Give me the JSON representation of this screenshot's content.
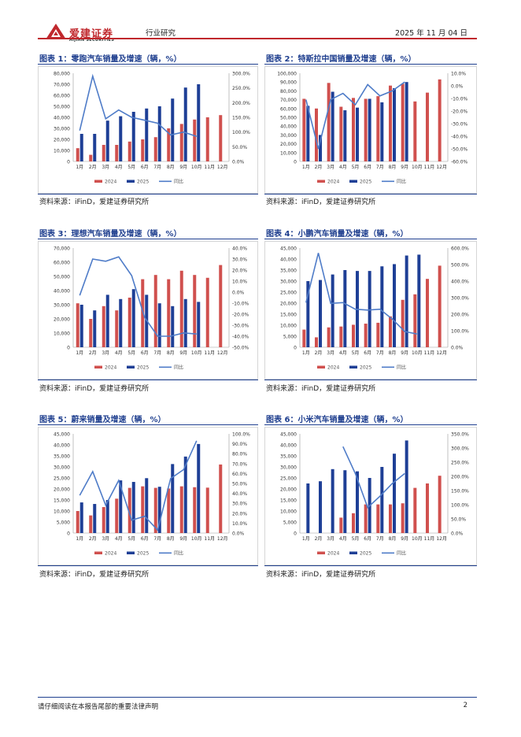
{
  "header": {
    "logo_cn": "爱建证券",
    "logo_en": "AIJIAN SECURITIES",
    "category": "行业研究",
    "date": "2025 年 11 月 04 日"
  },
  "footer": {
    "disclaimer": "请仔细阅读在本报告尾部的重要法律声明",
    "page": "2"
  },
  "legend": {
    "s2024": "2024",
    "s2025": "2025",
    "yoy": "同比"
  },
  "colors": {
    "s2024": "#d0504e",
    "s2025": "#1e3f96",
    "yoy": "#4f7cc8",
    "title": "#1f3f8f",
    "brand": "#c0282d"
  },
  "charts": [
    {
      "title": "图表 1：零跑汽车销量及增速（辆，%）",
      "source": "资料来源：iFinD，爱建证券研究所",
      "chart_data": {
        "type": "bar",
        "categories": [
          "1月",
          "2月",
          "3月",
          "4月",
          "5月",
          "6月",
          "7月",
          "8月",
          "9月",
          "10月",
          "11月",
          "12月"
        ],
        "series": [
          {
            "name": "2024",
            "axis": "left",
            "values": [
              12000,
              6000,
              15000,
              15000,
              18000,
              20000,
              22000,
              30000,
              34000,
              38000,
              40000,
              42000
            ]
          },
          {
            "name": "2025",
            "axis": "left",
            "values": [
              25000,
              25000,
              37000,
              41000,
              45000,
              48000,
              50000,
              57000,
              67000,
              70000,
              null,
              null
            ]
          },
          {
            "name": "同比",
            "type": "line",
            "axis": "right",
            "values": [
              105,
              290,
              145,
              175,
              150,
              140,
              130,
              90,
              100,
              85,
              null,
              null
            ]
          }
        ],
        "y_left": {
          "min": 0,
          "max": 80000,
          "step": 10000,
          "labels": [
            "0",
            "10,000",
            "20,000",
            "30,000",
            "40,000",
            "50,000",
            "60,000",
            "70,000",
            "80,000"
          ]
        },
        "y_right": {
          "min": 0,
          "max": 300,
          "step": 50,
          "labels": [
            "0.0%",
            "50.0%",
            "100.0%",
            "150.0%",
            "200.0%",
            "250.0%",
            "300.0%"
          ]
        }
      }
    },
    {
      "title": "图表 2：特斯拉中国销量及增速（辆，%）",
      "source": "资料来源：iFinD，爱建证券研究所",
      "chart_data": {
        "type": "bar",
        "categories": [
          "1月",
          "2月",
          "3月",
          "4月",
          "5月",
          "6月",
          "7月",
          "8月",
          "9月",
          "10月",
          "11月",
          "12月"
        ],
        "series": [
          {
            "name": "2024",
            "axis": "left",
            "values": [
              71000,
              60000,
              89000,
              62000,
              72000,
              71000,
              74000,
              86000,
              88000,
              68000,
              78000,
              93000
            ]
          },
          {
            "name": "2025",
            "axis": "left",
            "values": [
              63000,
              30000,
              79000,
              58000,
              61000,
              71000,
              67000,
              83000,
              90000,
              null,
              null,
              null
            ]
          },
          {
            "name": "同比",
            "type": "line",
            "axis": "right",
            "values": [
              -11,
              -50,
              -11,
              -6,
              -15,
              1,
              -8,
              -4,
              3,
              null,
              null,
              null
            ]
          }
        ],
        "y_left": {
          "min": 0,
          "max": 100000,
          "step": 10000,
          "labels": [
            "0",
            "10,000",
            "20,000",
            "30,000",
            "40,000",
            "50,000",
            "60,000",
            "70,000",
            "80,000",
            "90,000",
            "100,000"
          ]
        },
        "y_right": {
          "min": -60,
          "max": 10,
          "step": 10,
          "labels": [
            "-60.0%",
            "-50.0%",
            "-40.0%",
            "-30.0%",
            "-20.0%",
            "-10.0%",
            "0.0%",
            "10.0%"
          ]
        }
      }
    },
    {
      "title": "图表 3：理想汽车销量及增速（辆，%）",
      "source": "资料来源：iFinD，爱建证券研究所",
      "chart_data": {
        "type": "bar",
        "categories": [
          "1月",
          "2月",
          "3月",
          "4月",
          "5月",
          "6月",
          "7月",
          "8月",
          "9月",
          "10月",
          "11月",
          "12月"
        ],
        "series": [
          {
            "name": "2024",
            "axis": "left",
            "values": [
              31000,
              20000,
              29000,
              26000,
              35000,
              48000,
              51000,
              48000,
              54000,
              51000,
              49000,
              58000
            ]
          },
          {
            "name": "2025",
            "axis": "left",
            "values": [
              30000,
              26000,
              37000,
              34000,
              41000,
              37000,
              31000,
              29000,
              34000,
              32000,
              null,
              null
            ]
          },
          {
            "name": "同比",
            "type": "line",
            "axis": "right",
            "values": [
              -3,
              30,
              28,
              32,
              15,
              -23,
              -40,
              -40,
              -37,
              -38,
              null,
              null
            ]
          }
        ],
        "y_left": {
          "min": 0,
          "max": 70000,
          "step": 10000,
          "labels": [
            "0",
            "10,000",
            "20,000",
            "30,000",
            "40,000",
            "50,000",
            "60,000",
            "70,000"
          ]
        },
        "y_right": {
          "min": -50,
          "max": 40,
          "step": 10,
          "labels": [
            "-50.0%",
            "-40.0%",
            "-30.0%",
            "-20.0%",
            "-10.0%",
            "0.0%",
            "10.0%",
            "20.0%",
            "30.0%",
            "40.0%"
          ]
        }
      }
    },
    {
      "title": "图表 4：小鹏汽车销量及增速（辆，%）",
      "source": "资料来源：iFinD，爱建证券研究所",
      "chart_data": {
        "type": "bar",
        "categories": [
          "1月",
          "2月",
          "3月",
          "4月",
          "5月",
          "6月",
          "7月",
          "8月",
          "9月",
          "10月",
          "11月",
          "12月"
        ],
        "series": [
          {
            "name": "2024",
            "axis": "left",
            "values": [
              8000,
              4500,
              9000,
              9400,
              10200,
              10700,
              11100,
              14000,
              21500,
              24000,
              31000,
              37000
            ]
          },
          {
            "name": "2025",
            "axis": "left",
            "values": [
              30000,
              30500,
              33000,
              35000,
              34600,
              34600,
              36700,
              37700,
              41600,
              42000,
              null,
              null
            ]
          },
          {
            "name": "同比",
            "type": "line",
            "axis": "right",
            "values": [
              270,
              570,
              265,
              270,
              230,
              225,
              230,
              170,
              95,
              80,
              null,
              null
            ]
          }
        ],
        "y_left": {
          "min": 0,
          "max": 45000,
          "step": 5000,
          "labels": [
            "0",
            "5,000",
            "10,000",
            "15,000",
            "20,000",
            "25,000",
            "30,000",
            "35,000",
            "40,000",
            "45,000"
          ]
        },
        "y_right": {
          "min": 0,
          "max": 600,
          "step": 100,
          "labels": [
            "0.0%",
            "100.0%",
            "200.0%",
            "300.0%",
            "400.0%",
            "500.0%",
            "600.0%"
          ]
        }
      }
    },
    {
      "title": "图表 5：蔚来销量及增速（辆，%）",
      "source": "资料来源：iFinD，爱建证券研究所",
      "chart_data": {
        "type": "bar",
        "categories": [
          "1月",
          "2月",
          "3月",
          "4月",
          "5月",
          "6月",
          "7月",
          "8月",
          "9月",
          "10月",
          "11月",
          "12月"
        ],
        "series": [
          {
            "name": "2024",
            "axis": "left",
            "values": [
              10000,
              8000,
              11800,
              15600,
              20500,
              21200,
              20500,
              20200,
              21200,
              20800,
              20600,
              31100
            ]
          },
          {
            "name": "2025",
            "axis": "left",
            "values": [
              13900,
              13200,
              15000,
              23900,
              23200,
              24900,
              21000,
              31300,
              34700,
              40400,
              null,
              null
            ]
          },
          {
            "name": "同比",
            "type": "line",
            "axis": "right",
            "values": [
              38,
              62,
              28,
              53,
              13,
              17,
              3,
              55,
              64,
              93,
              null,
              null
            ]
          }
        ],
        "y_left": {
          "min": 0,
          "max": 45000,
          "step": 5000,
          "labels": [
            "0",
            "5,000",
            "10,000",
            "15,000",
            "20,000",
            "25,000",
            "30,000",
            "35,000",
            "40,000",
            "45,000"
          ]
        },
        "y_right": {
          "min": 0,
          "max": 100,
          "step": 10,
          "labels": [
            "0.0%",
            "10.0%",
            "20.0%",
            "30.0%",
            "40.0%",
            "50.0%",
            "60.0%",
            "70.0%",
            "80.0%",
            "90.0%",
            "100.0%"
          ]
        }
      }
    },
    {
      "title": "图表 6：小米汽车销量及增速（辆，%）",
      "source": "资料来源：iFinD，爱建证券研究所",
      "chart_data": {
        "type": "bar",
        "categories": [
          "1月",
          "2月",
          "3月",
          "4月",
          "5月",
          "6月",
          "7月",
          "8月",
          "9月",
          "10月",
          "11月",
          "12月"
        ],
        "series": [
          {
            "name": "2024",
            "axis": "left",
            "values": [
              null,
              null,
              null,
              7000,
              9000,
              13000,
              13000,
              13000,
              13500,
              20500,
              22500,
              26000
            ]
          },
          {
            "name": "2025",
            "axis": "left",
            "values": [
              22500,
              23500,
              29000,
              28500,
              28000,
              25000,
              30000,
              36000,
              42000,
              null,
              null,
              null
            ]
          },
          {
            "name": "同比",
            "type": "line",
            "axis": "right",
            "values": [
              null,
              null,
              null,
              305,
              210,
              90,
              130,
              175,
              210,
              null,
              null,
              null
            ]
          }
        ],
        "y_left": {
          "min": 0,
          "max": 45000,
          "step": 5000,
          "labels": [
            "0",
            "5,000",
            "10,000",
            "15,000",
            "20,000",
            "25,000",
            "30,000",
            "35,000",
            "40,000",
            "45,000"
          ]
        },
        "y_right": {
          "min": 0,
          "max": 350,
          "step": 50,
          "labels": [
            "0.0%",
            "50.0%",
            "100.0%",
            "150.0%",
            "200.0%",
            "250.0%",
            "300.0%",
            "350.0%"
          ]
        }
      }
    }
  ]
}
